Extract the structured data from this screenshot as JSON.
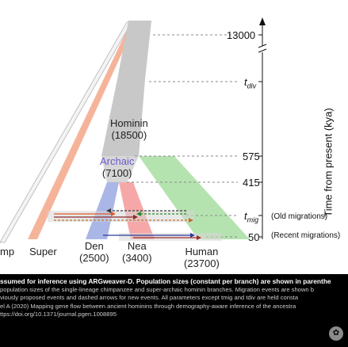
{
  "populations": {
    "hominin": {
      "name": "Hominin",
      "size": "(18500)"
    },
    "archaic": {
      "name": "Archaic",
      "size": "(7100)"
    },
    "den": {
      "name": "Den",
      "size": "(2500)"
    },
    "nea": {
      "name": "Nea",
      "size": "(3400)"
    },
    "human": {
      "name": "Human",
      "size": "(23700)"
    },
    "super": {
      "name": "Super"
    },
    "chimp": {
      "name": "mp"
    }
  },
  "time_axis": {
    "title": "Time from present (kya)",
    "ticks": [
      {
        "label": "13000"
      },
      {
        "label": "t",
        "sub": "div"
      },
      {
        "label": "575"
      },
      {
        "label": "415"
      },
      {
        "label": "t",
        "sub": "mig",
        "note": "(Old migrations)"
      },
      {
        "label": "50",
        "note": "(Recent migrations)"
      }
    ]
  },
  "colors": {
    "hominin": "#c8c8c8",
    "super": "#f5b49a",
    "den": "#a9b6e6",
    "nea": "#f6a8a8",
    "human": "#b5e3b0",
    "archaic_label": "#6a5acd",
    "caption_bg": "#000000"
  },
  "caption": {
    "line1": "ssumed for inference using ARGweaver-D.  Population sizes (constant per branch) are shown in parenthe",
    "line2": "population sizes of the single-lineage chimpanzee and super-archaic hominin branches. Migration events are shown b",
    "line3": "viously proposed events and dashed arrows for new events. All parameters except tmig and tdiv are held consta",
    "line4": "el A (2020) Mapping gene flow between ancient hominins through demography-aware inference of the ancestra",
    "line5": "ttps://doi.org/10.1371/journal.pgen.1008895"
  }
}
